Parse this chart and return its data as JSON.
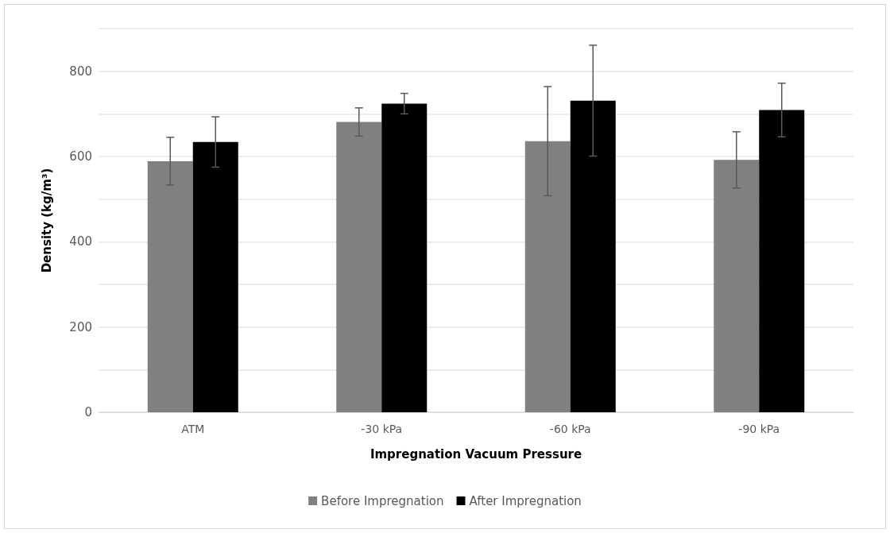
{
  "chart_data": {
    "type": "bar",
    "xlabel": "Impregnation Vacuum Pressure",
    "ylabel": "Density (kg/m³)",
    "categories": [
      "ATM",
      "-30 kPa",
      "-60 kPa",
      "-90 kPa"
    ],
    "series": [
      {
        "name": "Before Impregnation",
        "color": "#808080",
        "values": [
          589,
          681,
          636,
          592
        ],
        "errors": [
          56,
          33,
          128,
          66
        ]
      },
      {
        "name": "After Impregnation",
        "color": "#000000",
        "values": [
          634,
          724,
          731,
          709
        ],
        "errors": [
          59,
          24,
          130,
          63
        ]
      }
    ],
    "ylim": [
      0,
      900
    ],
    "yticks": [
      0,
      {
        "value": 100,
        "label": null
      },
      200,
      {
        "value": 300,
        "label": null
      },
      400,
      {
        "value": 500,
        "label": null
      },
      600,
      {
        "value": 700,
        "label": null
      },
      800,
      {
        "value": 900,
        "label": null
      }
    ],
    "grid": "y",
    "legend": "bottom"
  }
}
